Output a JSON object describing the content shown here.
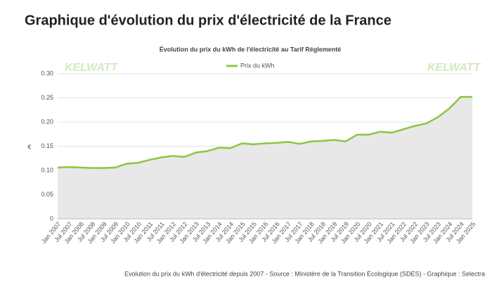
{
  "page_title": "Graphique d'évolution du prix d'électricité de la France",
  "chart_data": {
    "type": "line",
    "title": "Évolution du prix du kWh de l'électricité au Tarif Réglementé",
    "ylabel": "€",
    "watermark": "KELWATT",
    "source": "Evolution du prix du kWh d'électricité depuis 2007 - Source : Ministère de la Transition Écologique (SDES) - Graphique : Selectra",
    "categories": [
      "Jan 2007",
      "Jul 2007",
      "Jan 2008",
      "Jul 2008",
      "Jan 2009",
      "Jul 2009",
      "Jan 2010",
      "Jul 2010",
      "Jan 2011",
      "Jul 2011",
      "Jan 2012",
      "Jul 2012",
      "Jan 2013",
      "Jul 2013",
      "Jan 2014",
      "Jul 2014",
      "Jan 2015",
      "Jul 2015",
      "Jan 2016",
      "Jul 2016",
      "Jan 2017",
      "Jul 2017",
      "Jan 2018",
      "Jul 2018",
      "Jan 2019",
      "Jul 2019",
      "Jan 2020",
      "Jul 2020",
      "Jan 2021",
      "Jul 2021",
      "Jan 2022",
      "Jul 2022",
      "Jan 2023",
      "Jul 2023",
      "Jan 2024",
      "Jul 2024",
      "Jan 2025"
    ],
    "series": [
      {
        "name": "Prix du kWh",
        "color": "#8cc63f",
        "values": [
          0.106,
          0.107,
          0.106,
          0.105,
          0.105,
          0.106,
          0.114,
          0.116,
          0.122,
          0.127,
          0.13,
          0.128,
          0.137,
          0.14,
          0.147,
          0.146,
          0.156,
          0.154,
          0.156,
          0.157,
          0.159,
          0.155,
          0.16,
          0.161,
          0.163,
          0.16,
          0.174,
          0.174,
          0.18,
          0.178,
          0.185,
          0.192,
          0.197,
          0.21,
          0.228,
          0.252,
          0.252
        ]
      }
    ],
    "ylim": [
      0,
      0.3
    ],
    "yticks": [
      0,
      {
        "value": 0.05,
        "label": "0.05"
      },
      {
        "value": 0.1,
        "label": "0.10"
      },
      {
        "value": 0.15,
        "label": "0.15"
      },
      {
        "value": 0.2,
        "label": "0.20"
      },
      {
        "value": 0.25,
        "label": "0.25"
      },
      {
        "value": 0.3,
        "label": "0.30"
      }
    ],
    "grid": true,
    "area_color": "#e8e8e8"
  }
}
